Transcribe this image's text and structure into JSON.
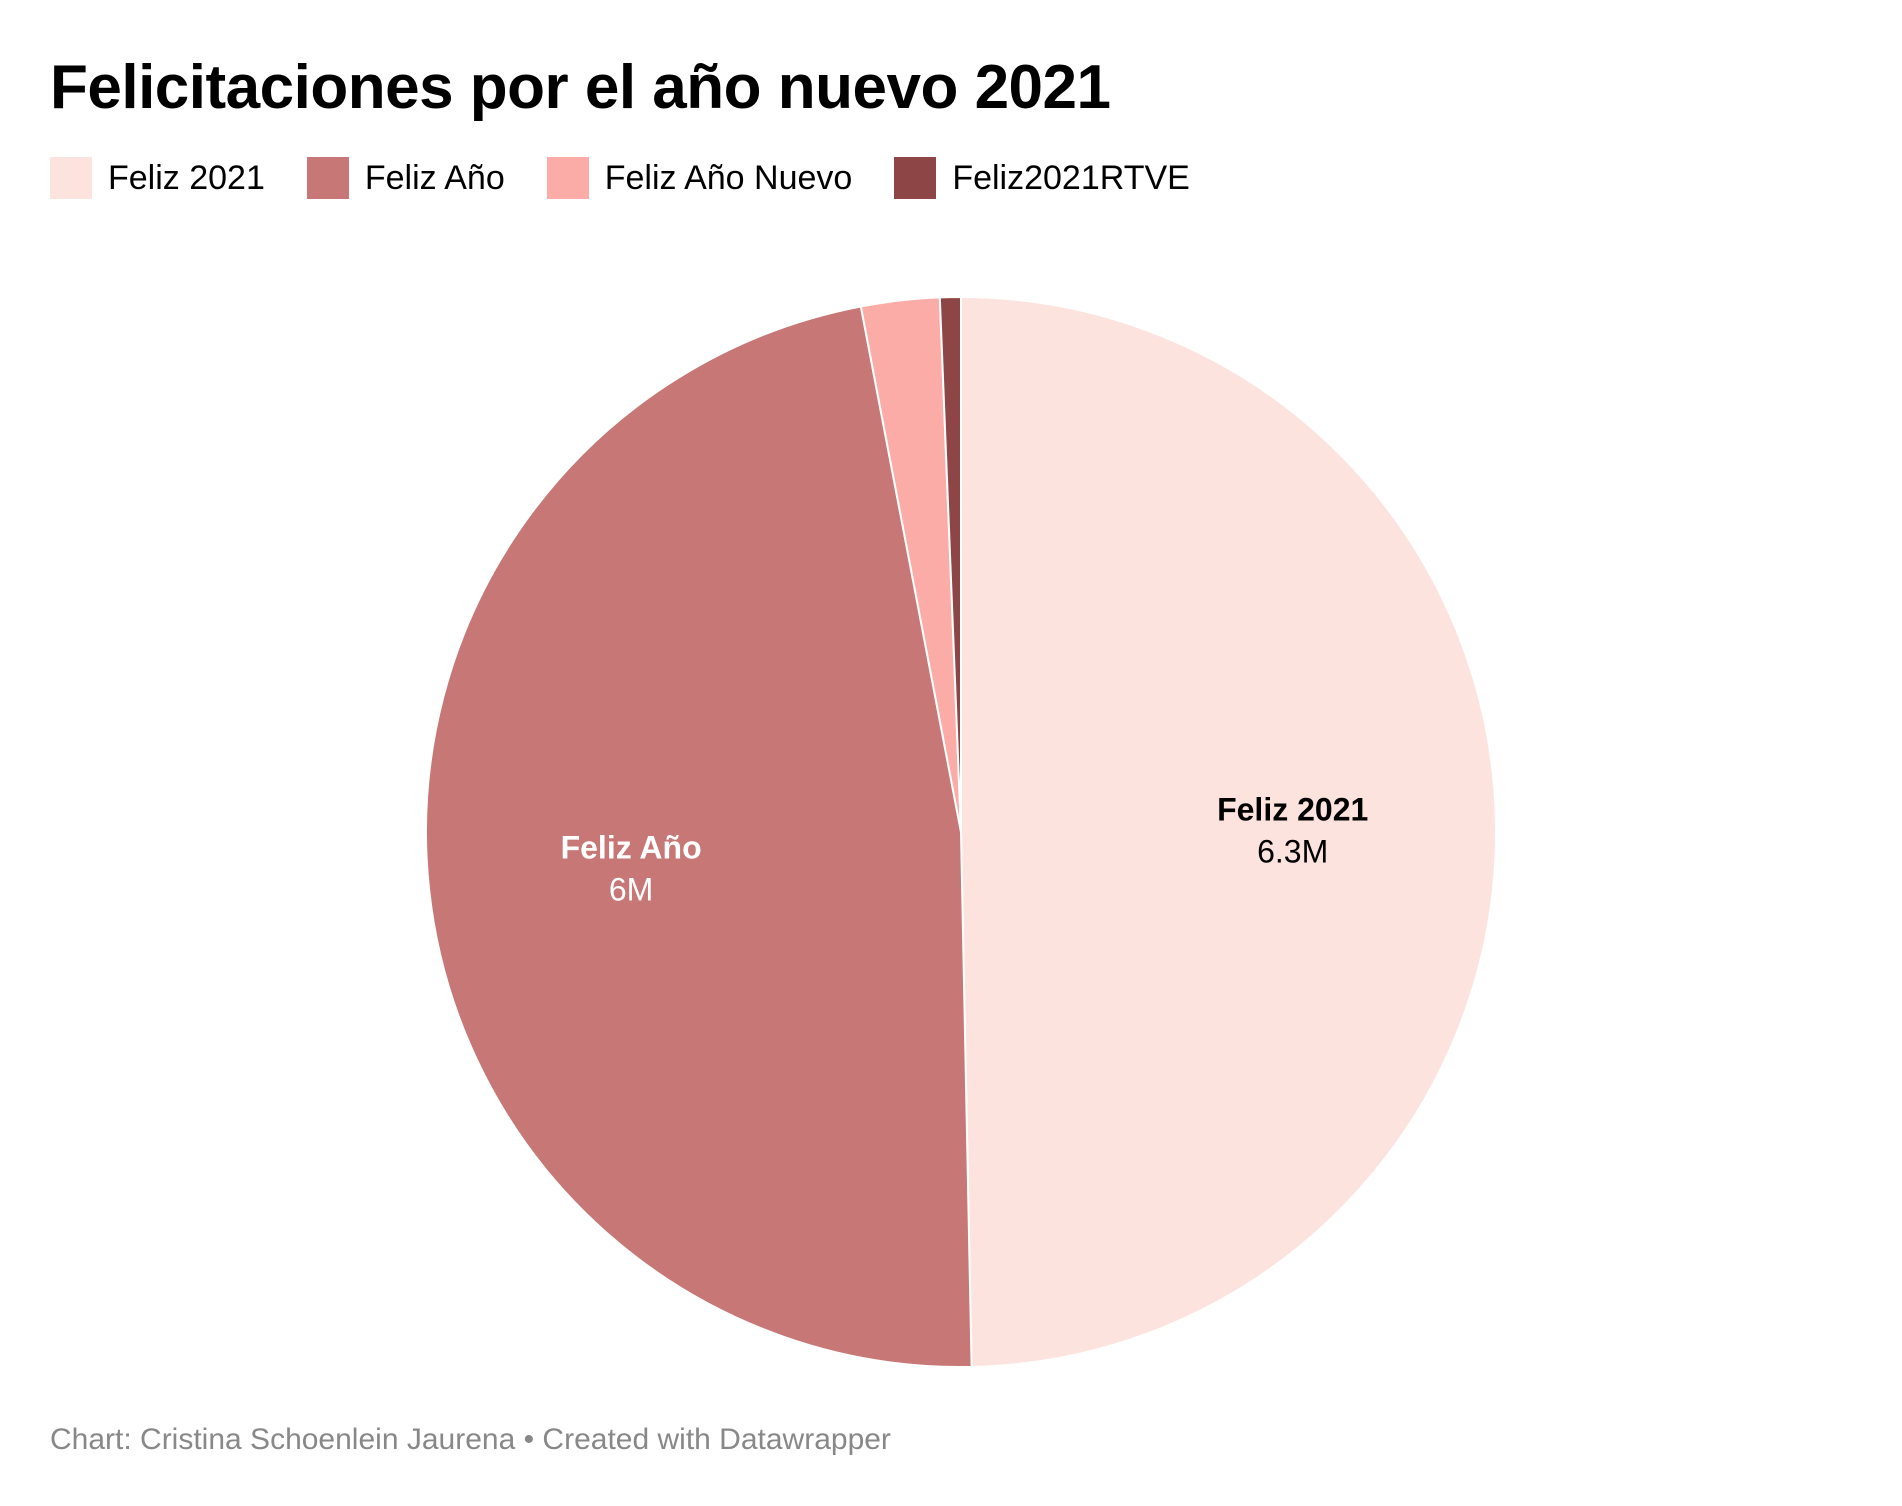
{
  "chart_data": {
    "type": "pie",
    "title": "Felicitaciones por el año nuevo 2021",
    "series": [
      {
        "name": "Feliz 2021",
        "value": 6.3,
        "label": "6.3M",
        "color": "#fde3de"
      },
      {
        "name": "Feliz Año",
        "value": 6.0,
        "label": "6M",
        "color": "#c77775"
      },
      {
        "name": "Feliz Año Nuevo",
        "value": 0.3,
        "label": "",
        "color": "#fcaca7"
      },
      {
        "name": "Feliz2021RTVE",
        "value": 0.08,
        "label": "",
        "color": "#8e4546"
      }
    ],
    "unit": "M",
    "legend_position": "top-left",
    "start": "top",
    "direction": "clockwise"
  },
  "footer": {
    "text": "Chart: Cristina Schoenlein Jaurena • Created with Datawrapper"
  }
}
